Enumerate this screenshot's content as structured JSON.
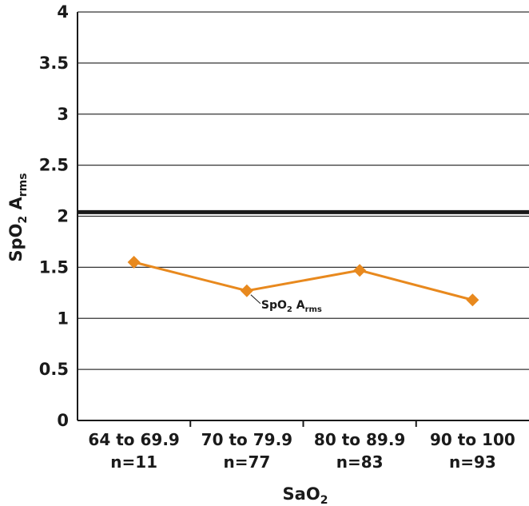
{
  "chart_data": {
    "type": "line",
    "categories": [
      {
        "range": "64 to 69.9",
        "n": "n=11"
      },
      {
        "range": "70 to 79.9",
        "n": "n=77"
      },
      {
        "range": "80 to 89.9",
        "n": "n=83"
      },
      {
        "range": "90 to 100",
        "n": "n=93"
      }
    ],
    "series": [
      {
        "name": "SpO2 Arms",
        "values": [
          1.55,
          1.27,
          1.47,
          1.18
        ],
        "color": "#E8891E",
        "marker": "diamond"
      }
    ],
    "reference_line": {
      "value": 2.04,
      "color": "#1a1a1a"
    },
    "ylim": [
      0,
      4
    ],
    "yticks": [
      "0",
      "0.5",
      "1",
      "1.5",
      "2",
      "2.5",
      "3",
      "3.5",
      "4"
    ],
    "grid": true,
    "xlabel": {
      "base": "SaO",
      "sub": "2"
    },
    "ylabel": {
      "base": "SpO",
      "sub1": "2",
      "mid": " A",
      "sub2": "rms"
    },
    "annotation": {
      "base": "SpO",
      "sub1": "2",
      "mid": " A",
      "sub2": "rms",
      "series_index": 0,
      "point_index": 1
    }
  }
}
